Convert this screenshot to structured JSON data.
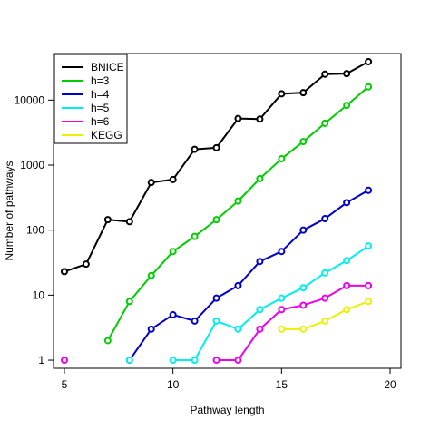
{
  "chart_data": {
    "type": "line",
    "xlabel": "Pathway length",
    "ylabel": "Number of pathways",
    "xlim": [
      4.5,
      20.5
    ],
    "ylim": [
      0.75,
      52000
    ],
    "y_scale": "log",
    "grid": false,
    "legend_position": "top-left",
    "x_ticks": [
      5,
      10,
      15,
      20
    ],
    "y_ticks": [
      {
        "value": 1,
        "label": "1"
      },
      {
        "value": 10,
        "label": "10"
      },
      {
        "value": 100,
        "label": "100"
      },
      {
        "value": 1000,
        "label": "1000"
      },
      {
        "value": 10000,
        "label": "10000"
      }
    ],
    "series": [
      {
        "name": "BNICE",
        "color": "#000000",
        "x": [
          5,
          6,
          7,
          8,
          9,
          10,
          11,
          12,
          13,
          14,
          15,
          16,
          17,
          18,
          19
        ],
        "y": [
          23,
          30,
          145,
          135,
          540,
          600,
          1750,
          1850,
          5200,
          5100,
          12500,
          13000,
          25000,
          25500,
          39000
        ]
      },
      {
        "name": "h=3",
        "color": "#00cd00",
        "x": [
          7,
          8,
          9,
          10,
          11,
          12,
          13,
          14,
          15,
          16,
          17,
          18,
          19
        ],
        "y": [
          2,
          8,
          20,
          47,
          80,
          145,
          280,
          620,
          1250,
          2300,
          4400,
          8300,
          16000
        ]
      },
      {
        "name": "h=4",
        "color": "#0000cd",
        "x": [
          8,
          9,
          10,
          11,
          12,
          13,
          14,
          15,
          16,
          17,
          18,
          19
        ],
        "y": [
          1,
          3,
          5,
          4,
          9,
          14,
          33,
          47,
          100,
          150,
          265,
          410
        ]
      },
      {
        "name": "h=5",
        "color": "#00eeee",
        "x": [
          8,
          10,
          11,
          12,
          13,
          14,
          15,
          16,
          17,
          18,
          19
        ],
        "y": [
          1,
          1,
          1,
          4,
          3,
          6,
          9,
          13,
          22,
          34,
          57
        ],
        "segments": [
          [
            8
          ],
          [
            10,
            11,
            12,
            13,
            14,
            15,
            16,
            17,
            18,
            19
          ]
        ]
      },
      {
        "name": "h=6",
        "color": "#ee00ee",
        "x": [
          5,
          12,
          13,
          14,
          15,
          16,
          17,
          18,
          19
        ],
        "y": [
          1,
          1,
          1,
          3,
          6,
          7,
          9,
          14,
          14
        ],
        "segments": [
          [
            5
          ],
          [
            12,
            13,
            14,
            15,
            16,
            17,
            18,
            19
          ]
        ]
      },
      {
        "name": "KEGG",
        "color": "#eeee00",
        "x": [
          15,
          16,
          17,
          18,
          19
        ],
        "y": [
          3,
          3,
          4,
          6,
          8
        ]
      }
    ]
  }
}
